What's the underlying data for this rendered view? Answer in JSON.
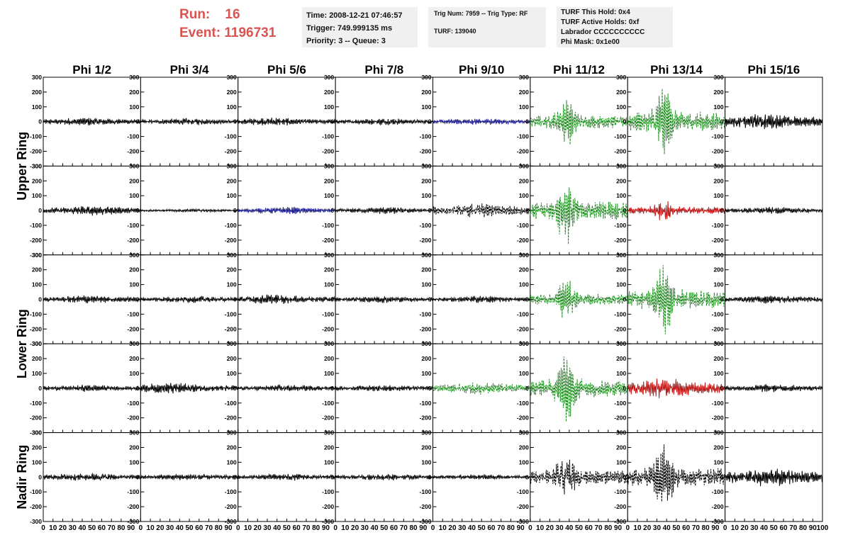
{
  "header": {
    "run_label": "Run:",
    "run_value": "16",
    "event_label": "Event:",
    "event_value": "1196731",
    "time": "Time: 2008-12-21 07:46:57",
    "trigger": "Trigger: 749.999135 ms",
    "priority": "Priority: 3 -- Queue: 3",
    "trig_num": "Trig Num: 7959 -- Trig Type: RF",
    "turf": "TURF: 139040",
    "turf_this_hold": "TURF This Hold: 0x4",
    "turf_active_holds": "TURF Active Holds: 0xf",
    "labrador": "Labrador CCCCCCCCCC",
    "phi_mask": "Phi Mask: 0x1e00"
  },
  "colors": {
    "header_red": "#d9534f",
    "trace_black": "#000000",
    "trace_blue": "#1a1a8c",
    "trace_green": "#1e8c1e",
    "trace_red": "#c01818",
    "panel_bg": "#ffffff"
  },
  "chart_data": {
    "type": "line",
    "column_titles": [
      "Phi 1/2",
      "Phi 3/4",
      "Phi 5/6",
      "Phi 7/8",
      "Phi 9/10",
      "Phi 11/12",
      "Phi 13/14",
      "Phi 15/16"
    ],
    "row_titles": [
      "Upper Ring",
      "Lower Ring",
      "Nadir Ring"
    ],
    "ylim": [
      -300,
      300
    ],
    "xlim": [
      0,
      100
    ],
    "y_ticks": [
      300,
      200,
      100,
      0,
      -100,
      -200,
      -300
    ],
    "x_ticks": [
      0,
      10,
      20,
      30,
      40,
      50,
      60,
      70,
      80,
      90,
      100
    ],
    "grid": false,
    "panels": [
      [
        {
          "color": "black",
          "style": "solid",
          "peak_amplitude": 30,
          "peak_at": 45
        },
        {
          "color": "black",
          "style": "solid",
          "peak_amplitude": 25,
          "peak_at": 50
        },
        {
          "color": "black",
          "style": "solid",
          "peak_amplitude": 30,
          "peak_at": 35
        },
        {
          "color": "black",
          "style": "solid",
          "peak_amplitude": 25,
          "peak_at": 50
        },
        {
          "color": "blue",
          "style": "solid",
          "peak_amplitude": 25,
          "peak_at": 50
        },
        {
          "color": "green",
          "style": "dashed",
          "peak_amplitude": 180,
          "peak_at": 37
        },
        {
          "color": "green",
          "style": "dashed",
          "peak_amplitude": 270,
          "peak_at": 37
        },
        {
          "color": "black",
          "style": "solid",
          "peak_amplitude": 60,
          "peak_at": 38
        }
      ],
      [
        {
          "color": "black",
          "style": "solid",
          "peak_amplitude": 35,
          "peak_at": 50
        },
        {
          "color": "black",
          "style": "solid",
          "peak_amplitude": 12,
          "peak_at": 50
        },
        {
          "color": "blue",
          "style": "solid",
          "peak_amplitude": 25,
          "peak_at": 50
        },
        {
          "color": "black",
          "style": "solid",
          "peak_amplitude": 25,
          "peak_at": 50
        },
        {
          "color": "black",
          "style": "dashed",
          "peak_amplitude": 50,
          "peak_at": 50
        },
        {
          "color": "green",
          "style": "dashed",
          "peak_amplitude": 260,
          "peak_at": 37
        },
        {
          "color": "red",
          "style": "solid",
          "peak_amplitude": 100,
          "peak_at": 37
        },
        {
          "color": "black",
          "style": "solid",
          "peak_amplitude": 25,
          "peak_at": 50
        }
      ],
      [
        {
          "color": "black",
          "style": "solid",
          "peak_amplitude": 30,
          "peak_at": 45
        },
        {
          "color": "black",
          "style": "solid",
          "peak_amplitude": 25,
          "peak_at": 50
        },
        {
          "color": "black",
          "style": "solid",
          "peak_amplitude": 35,
          "peak_at": 35
        },
        {
          "color": "black",
          "style": "solid",
          "peak_amplitude": 25,
          "peak_at": 50
        },
        {
          "color": "black",
          "style": "solid",
          "peak_amplitude": 25,
          "peak_at": 50
        },
        {
          "color": "green",
          "style": "dashed",
          "peak_amplitude": 150,
          "peak_at": 37
        },
        {
          "color": "green",
          "style": "dashed",
          "peak_amplitude": 270,
          "peak_at": 37
        },
        {
          "color": "black",
          "style": "solid",
          "peak_amplitude": 30,
          "peak_at": 50
        }
      ],
      [
        {
          "color": "black",
          "style": "solid",
          "peak_amplitude": 25,
          "peak_at": 50
        },
        {
          "color": "black",
          "style": "solid",
          "peak_amplitude": 40,
          "peak_at": 30
        },
        {
          "color": "black",
          "style": "solid",
          "peak_amplitude": 25,
          "peak_at": 50
        },
        {
          "color": "black",
          "style": "solid",
          "peak_amplitude": 25,
          "peak_at": 50
        },
        {
          "color": "green",
          "style": "dashed",
          "peak_amplitude": 45,
          "peak_at": 50
        },
        {
          "color": "green",
          "style": "dashed",
          "peak_amplitude": 250,
          "peak_at": 37
        },
        {
          "color": "red",
          "style": "solid",
          "peak_amplitude": 70,
          "peak_at": 37
        },
        {
          "color": "black",
          "style": "solid",
          "peak_amplitude": 30,
          "peak_at": 50
        }
      ],
      [
        {
          "color": "black",
          "style": "solid",
          "peak_amplitude": 30,
          "peak_at": 45
        },
        {
          "color": "black",
          "style": "solid",
          "peak_amplitude": 25,
          "peak_at": 50
        },
        {
          "color": "black",
          "style": "solid",
          "peak_amplitude": 25,
          "peak_at": 50
        },
        {
          "color": "black",
          "style": "solid",
          "peak_amplitude": 25,
          "peak_at": 50
        },
        {
          "color": "black",
          "style": "solid",
          "peak_amplitude": 20,
          "peak_at": 50
        },
        {
          "color": "black",
          "style": "dashed",
          "peak_amplitude": 200,
          "peak_at": 37
        },
        {
          "color": "black",
          "style": "dashed",
          "peak_amplitude": 250,
          "peak_at": 37
        },
        {
          "color": "black",
          "style": "solid",
          "peak_amplitude": 70,
          "peak_at": 42
        }
      ]
    ]
  }
}
